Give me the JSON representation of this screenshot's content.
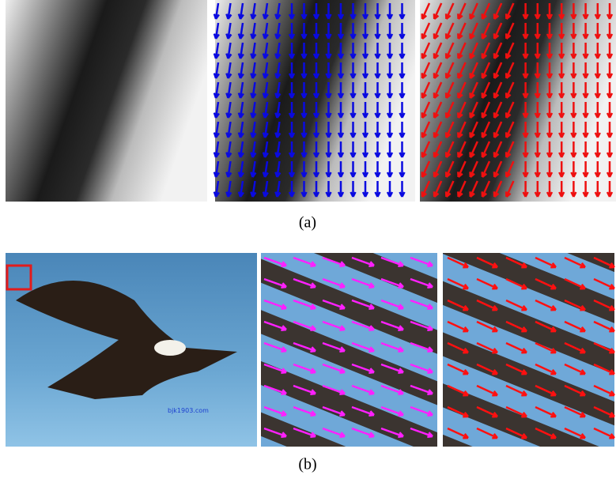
{
  "figure": {
    "captions": [
      "(a)",
      "(b)"
    ],
    "watermark": "bjk1903.com"
  }
}
